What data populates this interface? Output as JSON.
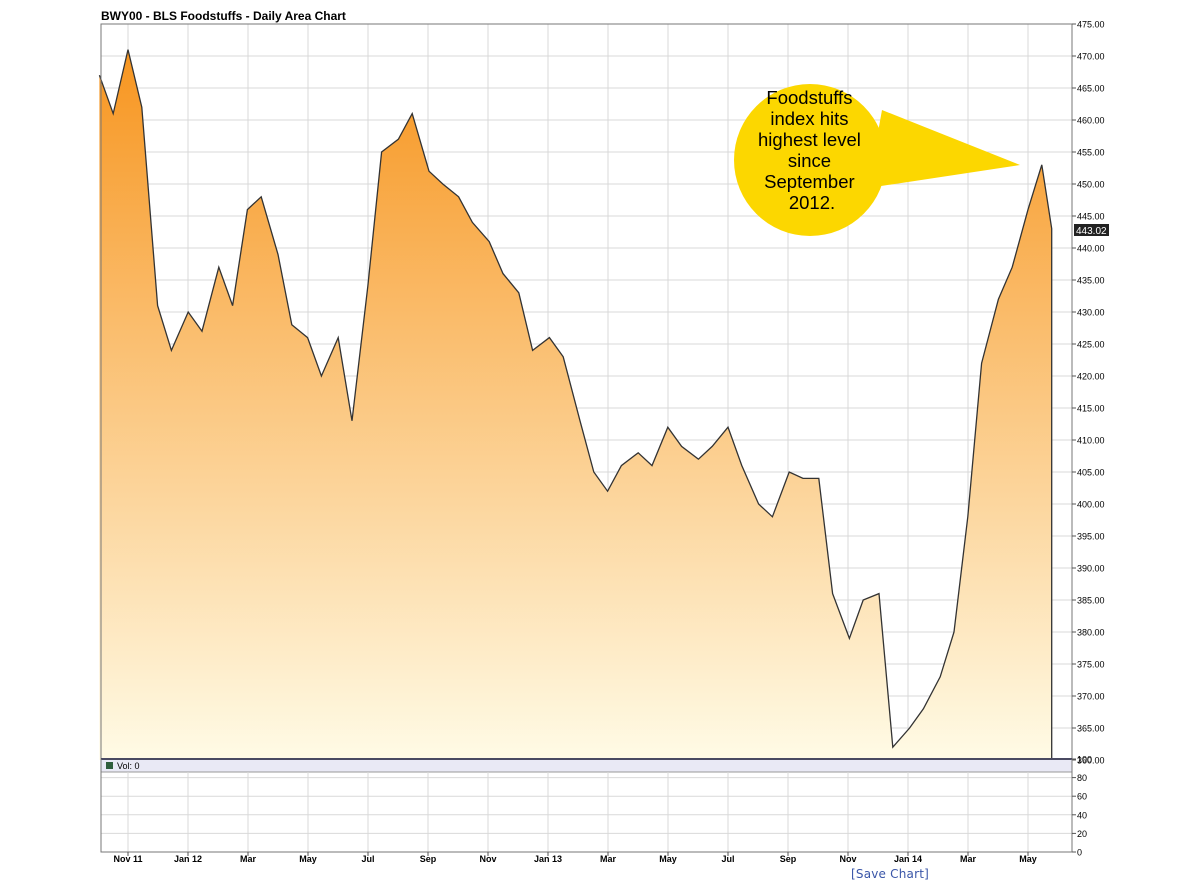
{
  "title": "BWY00 - BLS Foodstuffs - Daily Area Chart",
  "last_value_label": "443.02",
  "callout": {
    "lines": [
      "Foodstuffs",
      "index hits",
      "highest level",
      "since",
      "September",
      "2012."
    ],
    "color": "#fcd700"
  },
  "volume_label": "Vol: 0",
  "save_chart_label": "[Save Chart]",
  "colors": {
    "line": "#333333",
    "area_top": "#f7951f",
    "area_bottom": "#fffbe6",
    "grid": "#d9d9d9",
    "volume_band": "#e9e9f5",
    "volume_band_border": "#1c1c4e",
    "link": "#3a56a8"
  },
  "chart_data": {
    "type": "area",
    "title": "BWY00 - BLS Foodstuffs - Daily Area Chart",
    "xlabel": "",
    "ylabel": "",
    "x_tick_labels": [
      "Nov 11",
      "Jan 12",
      "Mar",
      "May",
      "Jul",
      "Sep",
      "Nov",
      "Jan 13",
      "Mar",
      "May",
      "Jul",
      "Sep",
      "Nov",
      "Jan 14",
      "Mar",
      "May"
    ],
    "y_tick_labels": [
      "475.00",
      "470.00",
      "465.00",
      "460.00",
      "455.00",
      "450.00",
      "445.00",
      "440.00",
      "435.00",
      "430.00",
      "425.00",
      "420.00",
      "415.00",
      "410.00",
      "405.00",
      "400.00",
      "395.00",
      "390.00",
      "385.00",
      "380.00",
      "375.00",
      "370.00",
      "365.00",
      "360.00"
    ],
    "ylim": [
      360,
      475
    ],
    "grid": true,
    "series": [
      {
        "values_by_month": [
          [
            "2011-10-03",
            467
          ],
          [
            "2011-10-17",
            461
          ],
          [
            "2011-11-01",
            471
          ],
          [
            "2011-11-15",
            462
          ],
          [
            "2011-12-01",
            431
          ],
          [
            "2011-12-15",
            424
          ],
          [
            "2012-01-01",
            430
          ],
          [
            "2012-01-15",
            427
          ],
          [
            "2012-02-01",
            437
          ],
          [
            "2012-02-15",
            431
          ],
          [
            "2012-03-01",
            446
          ],
          [
            "2012-03-15",
            448
          ],
          [
            "2012-04-01",
            439
          ],
          [
            "2012-04-15",
            428
          ],
          [
            "2012-05-01",
            426
          ],
          [
            "2012-05-15",
            420
          ],
          [
            "2012-06-01",
            426
          ],
          [
            "2012-06-15",
            413
          ],
          [
            "2012-07-01",
            434
          ],
          [
            "2012-07-15",
            455
          ],
          [
            "2012-08-01",
            457
          ],
          [
            "2012-08-15",
            461
          ],
          [
            "2012-09-01",
            452
          ],
          [
            "2012-09-15",
            450
          ],
          [
            "2012-10-01",
            448
          ],
          [
            "2012-10-15",
            444
          ],
          [
            "2012-11-01",
            441
          ],
          [
            "2012-11-15",
            436
          ],
          [
            "2012-12-01",
            433
          ],
          [
            "2012-12-15",
            424
          ],
          [
            "2013-01-01",
            426
          ],
          [
            "2013-01-15",
            423
          ],
          [
            "2013-02-01",
            413
          ],
          [
            "2013-02-15",
            405
          ],
          [
            "2013-03-01",
            402
          ],
          [
            "2013-03-15",
            406
          ],
          [
            "2013-04-01",
            408
          ],
          [
            "2013-04-15",
            406
          ],
          [
            "2013-05-01",
            412
          ],
          [
            "2013-05-15",
            409
          ],
          [
            "2013-06-01",
            407
          ],
          [
            "2013-06-15",
            409
          ],
          [
            "2013-07-01",
            412
          ],
          [
            "2013-07-15",
            406
          ],
          [
            "2013-08-01",
            400
          ],
          [
            "2013-08-15",
            398
          ],
          [
            "2013-09-01",
            405
          ],
          [
            "2013-09-15",
            404
          ],
          [
            "2013-10-01",
            404
          ],
          [
            "2013-10-15",
            386
          ],
          [
            "2013-11-01",
            379
          ],
          [
            "2013-11-15",
            385
          ],
          [
            "2013-12-01",
            386
          ],
          [
            "2013-12-15",
            362
          ],
          [
            "2014-01-01",
            365
          ],
          [
            "2014-01-15",
            368
          ],
          [
            "2014-02-01",
            373
          ],
          [
            "2014-02-15",
            380
          ],
          [
            "2014-03-01",
            398
          ],
          [
            "2014-03-15",
            422
          ],
          [
            "2014-04-01",
            432
          ],
          [
            "2014-04-15",
            437
          ],
          [
            "2014-05-01",
            446
          ],
          [
            "2014-05-15",
            453
          ],
          [
            "2014-05-25",
            443.02
          ]
        ]
      }
    ],
    "volume": {
      "label": "Vol: 0",
      "ylim": [
        0,
        100
      ],
      "y_tick_labels": [
        "100",
        "80",
        "60",
        "40",
        "20",
        "0"
      ]
    }
  }
}
